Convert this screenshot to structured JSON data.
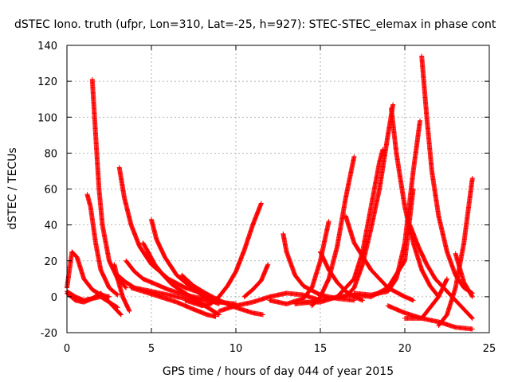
{
  "chart_data": {
    "type": "scatter",
    "title": "dSTEC Iono. truth (ufpr, Lon=310, Lat=-25, h=927): STEC-STEC_elemax in phase cont",
    "xlabel": "GPS time / hours of day 044 of year 2015",
    "ylabel": "dSTEC  / TECUs",
    "xlim": [
      0,
      25
    ],
    "ylim": [
      -20,
      140
    ],
    "xticks": [
      0,
      5,
      10,
      15,
      20,
      25
    ],
    "yticks": [
      -20,
      0,
      20,
      40,
      60,
      80,
      100,
      120,
      140
    ],
    "grid": true,
    "marker": "plus",
    "color": "#ff0000",
    "series": [
      {
        "x": [
          0.0,
          0.3,
          0.6,
          1.0,
          1.5,
          2.0,
          2.5
        ],
        "y": [
          5,
          25,
          22,
          10,
          4,
          1,
          0
        ]
      },
      {
        "x": [
          0.0,
          0.5,
          1.0,
          1.5,
          2.0,
          2.5,
          3.0
        ],
        "y": [
          3,
          0,
          -2,
          -1,
          0,
          -3,
          -6
        ]
      },
      {
        "x": [
          0.0,
          0.5,
          1.0,
          1.5,
          2.0,
          2.5,
          3.2
        ],
        "y": [
          2,
          -2,
          -3,
          -1,
          2,
          -3,
          -10
        ]
      },
      {
        "x": [
          1.2,
          1.4,
          1.7,
          2.0,
          2.5,
          3.0
        ],
        "y": [
          57,
          50,
          30,
          15,
          5,
          1
        ]
      },
      {
        "x": [
          1.5,
          1.7,
          1.9,
          2.1,
          2.5,
          3.0,
          3.5
        ],
        "y": [
          121,
          90,
          60,
          40,
          20,
          10,
          5
        ]
      },
      {
        "x": [
          3.1,
          3.4,
          3.8,
          4.3,
          5.0,
          6.0,
          7.0,
          8.0,
          8.5
        ],
        "y": [
          72,
          55,
          40,
          28,
          18,
          10,
          5,
          2,
          0
        ]
      },
      {
        "x": [
          2.8,
          3.0,
          3.3,
          3.7
        ],
        "y": [
          18,
          10,
          0,
          -8
        ]
      },
      {
        "x": [
          3.5,
          4.0,
          4.5,
          5.0,
          6.0,
          7.0,
          8.0,
          9.0
        ],
        "y": [
          20,
          14,
          10,
          8,
          4,
          1,
          -1,
          -2
        ]
      },
      {
        "x": [
          3.0,
          3.5,
          4.0,
          5.0,
          6.0,
          7.0,
          8.0,
          9.0,
          10.0
        ],
        "y": [
          12,
          8,
          5,
          3,
          1,
          -1,
          -2,
          -3,
          -4
        ]
      },
      {
        "x": [
          4.5,
          4.8,
          5.2,
          5.7,
          6.2,
          7.0,
          7.8,
          8.5,
          9.0
        ],
        "y": [
          30,
          25,
          18,
          12,
          7,
          2,
          -3,
          -7,
          -10
        ]
      },
      {
        "x": [
          5.0,
          5.3,
          5.8,
          6.5,
          7.5,
          8.5,
          9.0
        ],
        "y": [
          43,
          32,
          22,
          12,
          4,
          -2,
          -4
        ]
      },
      {
        "x": [
          3.8,
          4.5,
          5.5,
          6.5,
          7.5,
          8.3,
          8.8
        ],
        "y": [
          5,
          3,
          0,
          -3,
          -7,
          -10,
          -11
        ]
      },
      {
        "x": [
          6.8,
          7.5,
          8.2,
          9.0,
          10.0,
          11.0,
          11.6
        ],
        "y": [
          12,
          6,
          2,
          -2,
          -6,
          -9,
          -10
        ]
      },
      {
        "x": [
          7.0,
          8.0,
          8.5,
          9.0,
          9.5,
          10.0,
          10.5,
          11.0,
          11.5
        ],
        "y": [
          -2,
          -5,
          -4,
          0,
          6,
          14,
          26,
          40,
          52
        ]
      },
      {
        "x": [
          9.0,
          10.0,
          11.0,
          12.0,
          13.0,
          14.0,
          15.0
        ],
        "y": [
          -8,
          -5,
          -3,
          0,
          2,
          1,
          -2
        ]
      },
      {
        "x": [
          10.5,
          11.0,
          11.5,
          11.9
        ],
        "y": [
          0,
          4,
          9,
          18
        ]
      },
      {
        "x": [
          12.8,
          13.0,
          13.5,
          14.0,
          15.0,
          16.0,
          17.0
        ],
        "y": [
          35,
          25,
          12,
          6,
          1,
          -1,
          -2
        ]
      },
      {
        "x": [
          12.0,
          13.0,
          14.0,
          14.5,
          15.0,
          15.5
        ],
        "y": [
          -2,
          -4,
          -1,
          5,
          20,
          42
        ]
      },
      {
        "x": [
          14.5,
          15.0,
          15.5,
          16.0,
          16.5,
          17.0
        ],
        "y": [
          -5,
          0,
          10,
          28,
          55,
          78
        ]
      },
      {
        "x": [
          13.5,
          14.5,
          15.5,
          16.5,
          17.0,
          17.5,
          18.0,
          18.5,
          19.0,
          19.3
        ],
        "y": [
          -4,
          -3,
          -1,
          0,
          5,
          18,
          38,
          60,
          90,
          107
        ]
      },
      {
        "x": [
          14.0,
          15.0,
          16.0,
          17.0,
          17.5,
          18.0,
          18.5,
          18.7
        ],
        "y": [
          -3,
          -3,
          0,
          10,
          25,
          50,
          75,
          82
        ]
      },
      {
        "x": [
          15.0,
          15.5,
          16.0,
          16.5,
          17.0,
          17.5
        ],
        "y": [
          25,
          15,
          8,
          3,
          0,
          -2
        ]
      },
      {
        "x": [
          16.5,
          17.0,
          18.0,
          19.0,
          20.0,
          20.5
        ],
        "y": [
          45,
          30,
          15,
          5,
          0,
          -2
        ]
      },
      {
        "x": [
          16.0,
          17.0,
          18.0,
          19.0,
          20.0,
          20.5
        ],
        "y": [
          0,
          1,
          0,
          5,
          20,
          60
        ]
      },
      {
        "x": [
          17.0,
          18.0,
          19.0,
          19.5,
          20.0,
          20.5,
          20.9
        ],
        "y": [
          2,
          1,
          3,
          10,
          30,
          70,
          98
        ]
      },
      {
        "x": [
          19.2,
          19.5,
          20.0,
          20.5,
          21.0,
          21.5,
          22.0
        ],
        "y": [
          105,
          80,
          50,
          30,
          15,
          6,
          0
        ]
      },
      {
        "x": [
          20.3,
          20.8,
          21.3,
          21.8,
          22.5,
          23.3,
          24.0
        ],
        "y": [
          40,
          28,
          18,
          10,
          3,
          -5,
          -12
        ]
      },
      {
        "x": [
          21.0,
          21.3,
          21.6,
          22.0,
          22.5,
          23.0,
          23.5,
          24.0
        ],
        "y": [
          134,
          100,
          70,
          45,
          25,
          12,
          5,
          2
        ]
      },
      {
        "x": [
          19.0,
          20.0,
          21.0,
          22.0,
          23.0,
          24.0
        ],
        "y": [
          -5,
          -9,
          -12,
          -14,
          -17,
          -18
        ]
      },
      {
        "x": [
          20.0,
          21.0,
          21.5,
          22.0,
          22.5
        ],
        "y": [
          -12,
          -12,
          -6,
          0,
          10
        ]
      },
      {
        "x": [
          22.0,
          22.5,
          23.0,
          23.5,
          24.0
        ],
        "y": [
          -16,
          -10,
          5,
          30,
          66
        ]
      },
      {
        "x": [
          23.0,
          23.5,
          24.0
        ],
        "y": [
          24,
          8,
          0
        ]
      }
    ]
  }
}
